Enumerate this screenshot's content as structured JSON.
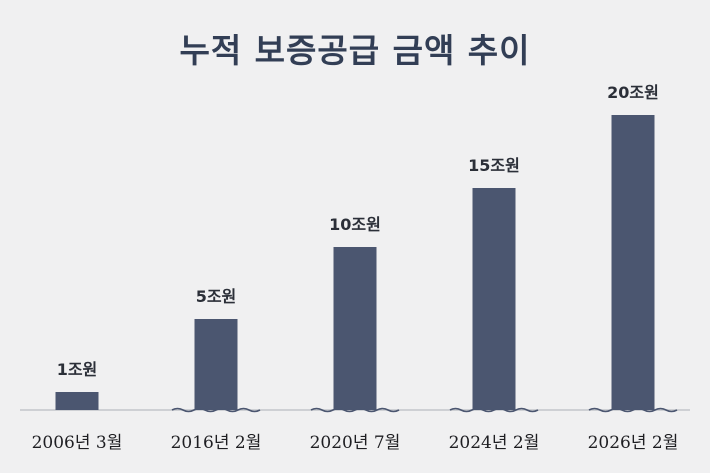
{
  "chart_data": {
    "type": "bar",
    "title": "누적 보증공급 금액 추이",
    "categories": [
      "2006년 3월",
      "2016년 2월",
      "2020년 7월",
      "2024년 2월",
      "2026년 2월"
    ],
    "values": [
      1,
      5,
      10,
      15,
      20
    ],
    "value_labels": [
      "1조원",
      "5조원",
      "10조원",
      "15조원",
      "20조원"
    ],
    "xlabel": "",
    "ylabel": "",
    "ylim": [
      0,
      20
    ],
    "grid": false,
    "legend": "none",
    "axis_break": true,
    "colors": {
      "bar": "#4b5670",
      "title": "#323e55",
      "background": "#f0f0f1"
    }
  }
}
